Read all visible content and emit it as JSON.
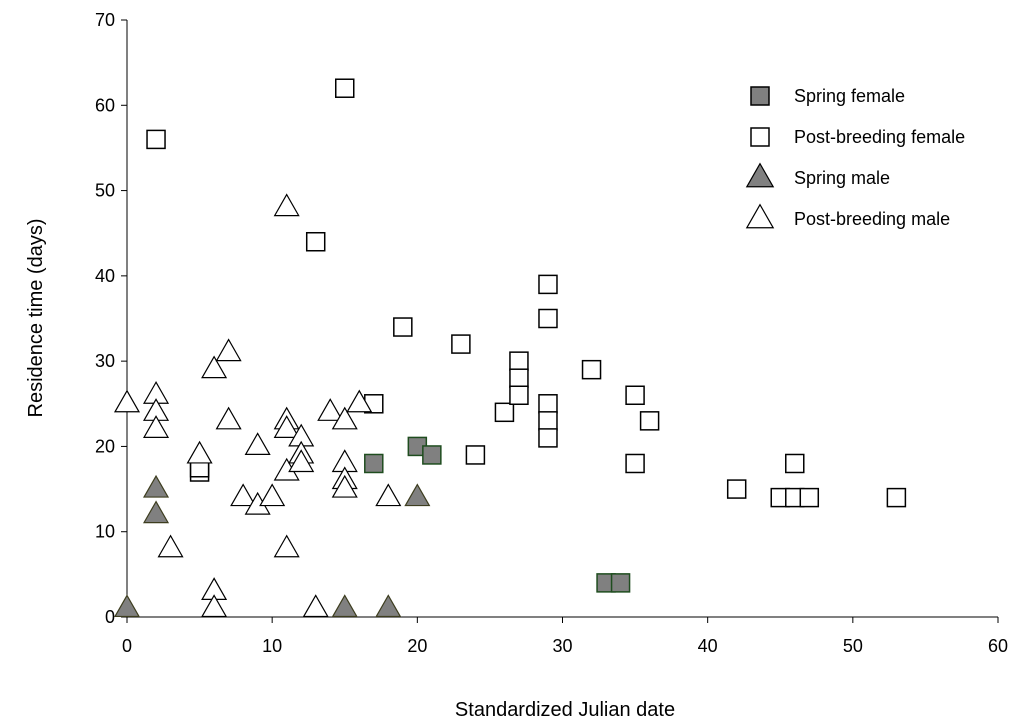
{
  "chart_data": {
    "type": "scatter",
    "xlabel": "Standardized Julian date",
    "ylabel": "Residence time (days)",
    "xlim": [
      0,
      60
    ],
    "ylim": [
      0,
      70
    ],
    "xticks": [
      0,
      10,
      20,
      30,
      40,
      50,
      60
    ],
    "yticks": [
      0,
      10,
      20,
      30,
      40,
      50,
      60,
      70
    ],
    "grid": false,
    "legend_position": "top-right",
    "series": [
      {
        "name": "Spring female",
        "marker": "square",
        "fill": "#808080",
        "stroke": "#1f4d1f",
        "points": [
          [
            17,
            18
          ],
          [
            20,
            20
          ],
          [
            21,
            19
          ],
          [
            33,
            4
          ],
          [
            34,
            4
          ]
        ]
      },
      {
        "name": "Post-breeding female",
        "marker": "square",
        "fill": "#ffffff",
        "stroke": "#000000",
        "points": [
          [
            2,
            56
          ],
          [
            5,
            17
          ],
          [
            5,
            17.5
          ],
          [
            13,
            44
          ],
          [
            15,
            62
          ],
          [
            17,
            25
          ],
          [
            19,
            34
          ],
          [
            23,
            32
          ],
          [
            24,
            19
          ],
          [
            26,
            24
          ],
          [
            27,
            30
          ],
          [
            27,
            28
          ],
          [
            27,
            26
          ],
          [
            29,
            39
          ],
          [
            29,
            35
          ],
          [
            29,
            25
          ],
          [
            29,
            23
          ],
          [
            29,
            21
          ],
          [
            32,
            29
          ],
          [
            35,
            26
          ],
          [
            35,
            18
          ],
          [
            36,
            23
          ],
          [
            42,
            15
          ],
          [
            45,
            14
          ],
          [
            46,
            18
          ],
          [
            46,
            14
          ],
          [
            47,
            14
          ],
          [
            53,
            14
          ]
        ]
      },
      {
        "name": "Spring male",
        "marker": "triangle",
        "fill": "#808080",
        "stroke": "#3d3d1f",
        "points": [
          [
            0,
            1
          ],
          [
            2,
            15
          ],
          [
            2,
            12
          ],
          [
            15,
            1
          ],
          [
            18,
            1
          ],
          [
            20,
            14
          ]
        ]
      },
      {
        "name": "Post-breeding male",
        "marker": "triangle",
        "fill": "#ffffff",
        "stroke": "#000000",
        "points": [
          [
            0,
            25
          ],
          [
            2,
            26
          ],
          [
            2,
            24
          ],
          [
            2,
            22
          ],
          [
            3,
            8
          ],
          [
            5,
            19
          ],
          [
            6,
            29
          ],
          [
            6,
            3
          ],
          [
            6,
            1
          ],
          [
            7,
            31
          ],
          [
            7,
            23
          ],
          [
            8,
            14
          ],
          [
            9,
            20
          ],
          [
            9,
            13
          ],
          [
            10,
            14
          ],
          [
            11,
            48
          ],
          [
            11,
            23
          ],
          [
            11,
            22
          ],
          [
            11,
            17
          ],
          [
            11,
            8
          ],
          [
            12,
            21
          ],
          [
            12,
            19
          ],
          [
            12,
            18
          ],
          [
            13,
            1
          ],
          [
            14,
            24
          ],
          [
            15,
            23
          ],
          [
            15,
            18
          ],
          [
            15,
            16
          ],
          [
            15,
            15
          ],
          [
            16,
            25
          ],
          [
            18,
            14
          ]
        ]
      }
    ]
  }
}
